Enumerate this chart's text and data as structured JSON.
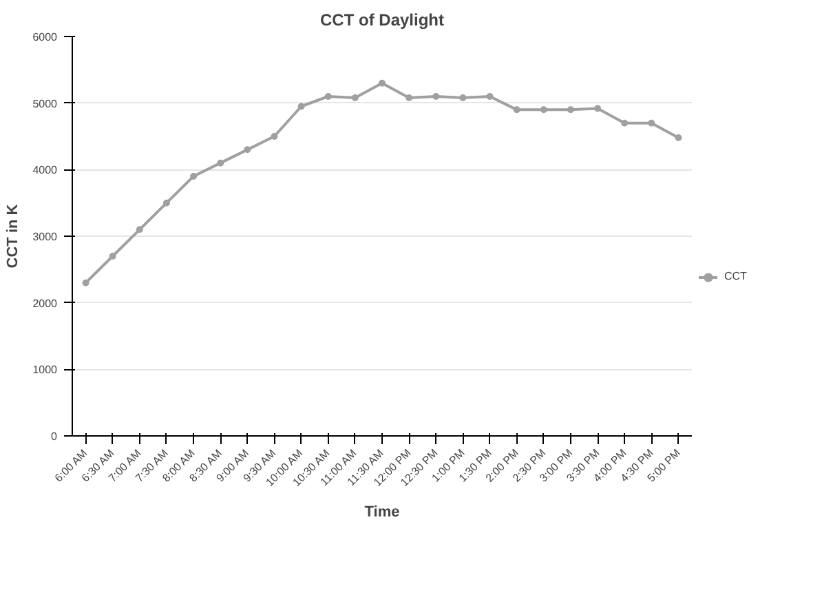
{
  "chart_data": {
    "type": "line",
    "title": "CCT of Daylight",
    "xlabel": "Time",
    "ylabel": "CCT in K",
    "categories": [
      "6:00 AM",
      "6:30 AM",
      "7:00 AM",
      "7:30 AM",
      "8:00 AM",
      "8:30 AM",
      "9:00 AM",
      "9:30 AM",
      "10:00 AM",
      "10:30 AM",
      "11:00 AM",
      "11:30 AM",
      "12:00 PM",
      "12:30 PM",
      "1:00 PM",
      "1:30 PM",
      "2:00 PM",
      "2:30 PM",
      "3:00 PM",
      "3:30 PM",
      "4:00 PM",
      "4:30 PM",
      "5:00 PM"
    ],
    "series": [
      {
        "name": "CCT",
        "color": "#a0a0a0",
        "values": [
          2300,
          2700,
          3100,
          3500,
          3900,
          4100,
          4300,
          4500,
          4950,
          5100,
          5080,
          5300,
          5080,
          5100,
          5080,
          5100,
          4900,
          4900,
          4900,
          4920,
          4700,
          4700,
          4480
        ]
      }
    ],
    "ylim": [
      0,
      6000
    ],
    "yticks": [
      0,
      1000,
      2000,
      3000,
      4000,
      5000,
      6000
    ],
    "grid": "y",
    "legend": "right",
    "marker": "circle",
    "line_style": "solid"
  }
}
